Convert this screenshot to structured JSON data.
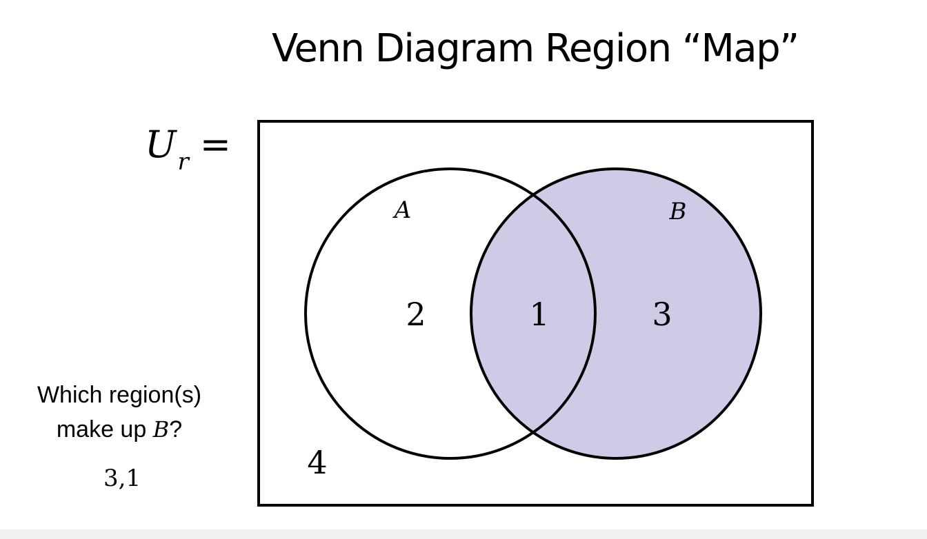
{
  "slide": {
    "title": "Venn Diagram Region “Map”",
    "universe_symbol": "U",
    "universe_subscript": "r",
    "universe_equals": "=",
    "question_line1": "Which region(s)",
    "question_line2_prefix": "make up ",
    "question_variable": "B",
    "question_line2_suffix": "?",
    "answer": "3,1"
  },
  "venn": {
    "set_a_label": "A",
    "set_b_label": "B",
    "regions": {
      "a_only": "2",
      "intersection": "1",
      "b_only": "3",
      "outside": "4"
    },
    "shaded_set": "B",
    "shade_color": "#cfcbe7",
    "stroke_color": "#000000"
  }
}
